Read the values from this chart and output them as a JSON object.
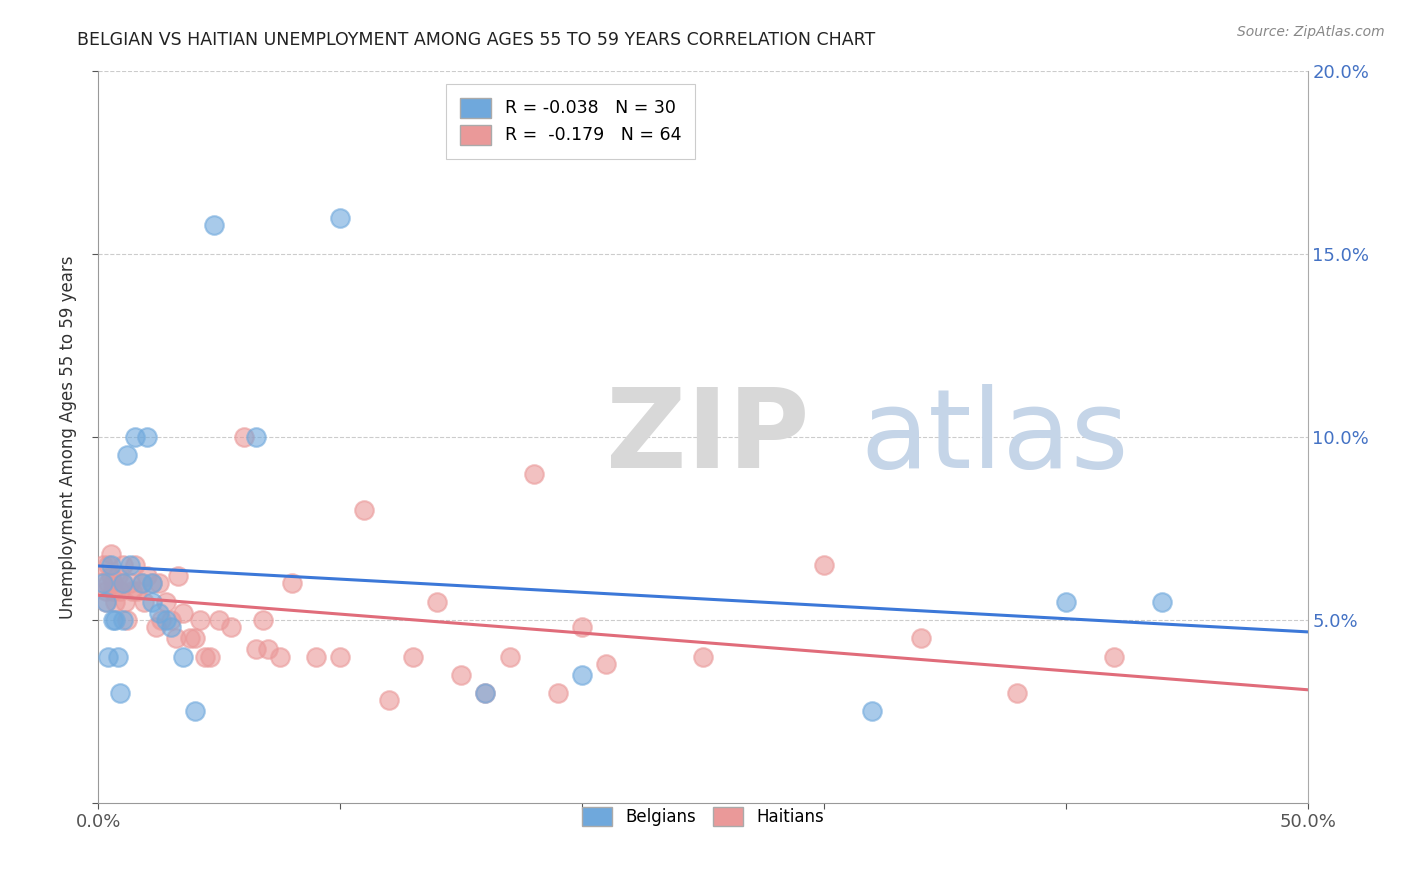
{
  "title": "BELGIAN VS HAITIAN UNEMPLOYMENT AMONG AGES 55 TO 59 YEARS CORRELATION CHART",
  "source": "Source: ZipAtlas.com",
  "ylabel": "Unemployment Among Ages 55 to 59 years",
  "xlim": [
    0,
    0.5
  ],
  "ylim": [
    0,
    0.2
  ],
  "xticks": [
    0.0,
    0.1,
    0.2,
    0.3,
    0.4,
    0.5
  ],
  "yticks": [
    0.0,
    0.05,
    0.1,
    0.15,
    0.2
  ],
  "xtick_labels_show": [
    "0.0%",
    "",
    "",
    "",
    "",
    "50.0%"
  ],
  "ytick_labels_right": [
    "",
    "5.0%",
    "10.0%",
    "15.0%",
    "20.0%"
  ],
  "belgian_color": "#6fa8dc",
  "haitian_color": "#ea9999",
  "belgian_line_color": "#3c78d8",
  "haitian_line_color": "#e06c7a",
  "legend_belgian": "R = -0.038   N = 30",
  "legend_haitian": "R =  -0.179   N = 64",
  "belgians_x": [
    0.002,
    0.003,
    0.004,
    0.005,
    0.006,
    0.007,
    0.008,
    0.009,
    0.01,
    0.012,
    0.013,
    0.015,
    0.018,
    0.02,
    0.022,
    0.025,
    0.028,
    0.03,
    0.035,
    0.048,
    0.065,
    0.1,
    0.16,
    0.32,
    0.4,
    0.44,
    0.01,
    0.022,
    0.04,
    0.2
  ],
  "belgians_y": [
    0.06,
    0.055,
    0.04,
    0.065,
    0.05,
    0.05,
    0.04,
    0.03,
    0.06,
    0.095,
    0.065,
    0.1,
    0.06,
    0.1,
    0.055,
    0.052,
    0.05,
    0.048,
    0.04,
    0.158,
    0.1,
    0.16,
    0.03,
    0.025,
    0.055,
    0.055,
    0.05,
    0.06,
    0.025,
    0.035
  ],
  "haitians_x": [
    0.001,
    0.002,
    0.003,
    0.003,
    0.004,
    0.004,
    0.005,
    0.005,
    0.006,
    0.006,
    0.007,
    0.008,
    0.009,
    0.01,
    0.01,
    0.011,
    0.012,
    0.013,
    0.014,
    0.015,
    0.016,
    0.018,
    0.019,
    0.02,
    0.022,
    0.024,
    0.025,
    0.026,
    0.028,
    0.03,
    0.032,
    0.033,
    0.035,
    0.038,
    0.04,
    0.042,
    0.044,
    0.046,
    0.05,
    0.055,
    0.06,
    0.065,
    0.068,
    0.07,
    0.075,
    0.08,
    0.09,
    0.1,
    0.11,
    0.12,
    0.13,
    0.14,
    0.15,
    0.16,
    0.17,
    0.18,
    0.19,
    0.2,
    0.21,
    0.25,
    0.3,
    0.34,
    0.38,
    0.42
  ],
  "haitians_y": [
    0.06,
    0.065,
    0.058,
    0.055,
    0.06,
    0.065,
    0.062,
    0.068,
    0.058,
    0.06,
    0.055,
    0.062,
    0.058,
    0.06,
    0.065,
    0.055,
    0.05,
    0.06,
    0.058,
    0.065,
    0.058,
    0.06,
    0.055,
    0.062,
    0.06,
    0.048,
    0.06,
    0.05,
    0.055,
    0.05,
    0.045,
    0.062,
    0.052,
    0.045,
    0.045,
    0.05,
    0.04,
    0.04,
    0.05,
    0.048,
    0.1,
    0.042,
    0.05,
    0.042,
    0.04,
    0.06,
    0.04,
    0.04,
    0.08,
    0.028,
    0.04,
    0.055,
    0.035,
    0.03,
    0.04,
    0.09,
    0.03,
    0.048,
    0.038,
    0.04,
    0.065,
    0.045,
    0.03,
    0.04
  ]
}
